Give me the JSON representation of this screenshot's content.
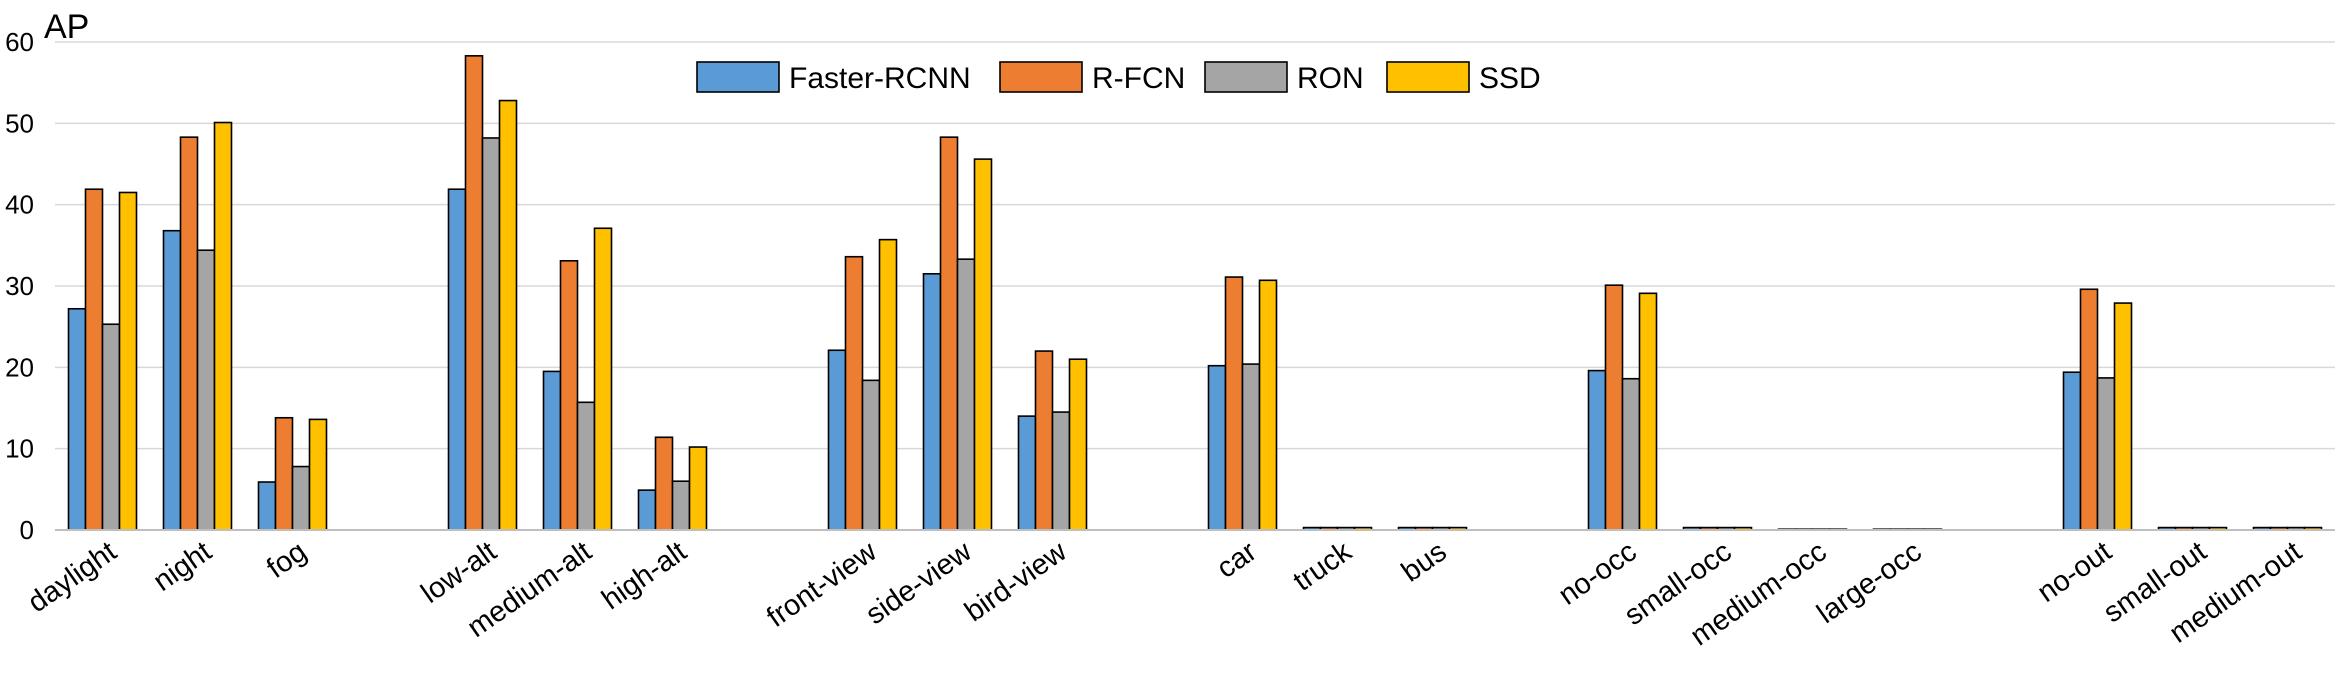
{
  "chart_data": {
    "type": "bar",
    "ylabel": "AP",
    "ylim": [
      0,
      60
    ],
    "yticks": [
      0,
      10,
      20,
      30,
      40,
      50,
      60
    ],
    "grid": true,
    "legend_position": "top-center",
    "categories": [
      "daylight",
      "night",
      "fog",
      "",
      "low-alt",
      "medium-alt",
      "high-alt",
      "",
      "front-view",
      "side-view",
      "bird-view",
      "",
      "car",
      "truck",
      "bus",
      "",
      "no-occ",
      "small-occ",
      "medium-occ",
      "large-occ",
      "",
      "no-out",
      "small-out",
      "medium-out"
    ],
    "series": [
      {
        "name": "Faster-RCNN",
        "color": "#5b9bd5",
        "values": [
          27.2,
          36.8,
          5.9,
          null,
          41.9,
          19.5,
          4.9,
          null,
          22.1,
          31.5,
          14.0,
          null,
          20.2,
          0.3,
          0.3,
          null,
          19.6,
          0.3,
          0,
          0,
          null,
          19.4,
          0.3,
          0.3
        ]
      },
      {
        "name": "R-FCN",
        "color": "#ed7d31",
        "values": [
          41.9,
          48.3,
          13.8,
          null,
          58.3,
          33.1,
          11.4,
          null,
          33.6,
          48.3,
          22.0,
          null,
          31.1,
          0.3,
          0.3,
          null,
          30.1,
          0.3,
          0,
          0,
          null,
          29.6,
          0.3,
          0.3
        ]
      },
      {
        "name": "RON",
        "color": "#a5a5a5",
        "values": [
          25.3,
          34.4,
          7.8,
          null,
          48.2,
          15.7,
          6.0,
          null,
          18.4,
          33.3,
          14.5,
          null,
          20.4,
          0.3,
          0.3,
          null,
          18.6,
          0.3,
          0,
          0,
          null,
          18.7,
          0.3,
          0.3
        ]
      },
      {
        "name": "SSD",
        "color": "#ffc000",
        "values": [
          41.5,
          50.1,
          13.6,
          null,
          52.8,
          37.1,
          10.2,
          null,
          35.7,
          45.6,
          21.0,
          null,
          30.7,
          0.3,
          0.3,
          null,
          29.1,
          0.3,
          0,
          0,
          null,
          27.9,
          0.3,
          0.3
        ]
      }
    ]
  }
}
